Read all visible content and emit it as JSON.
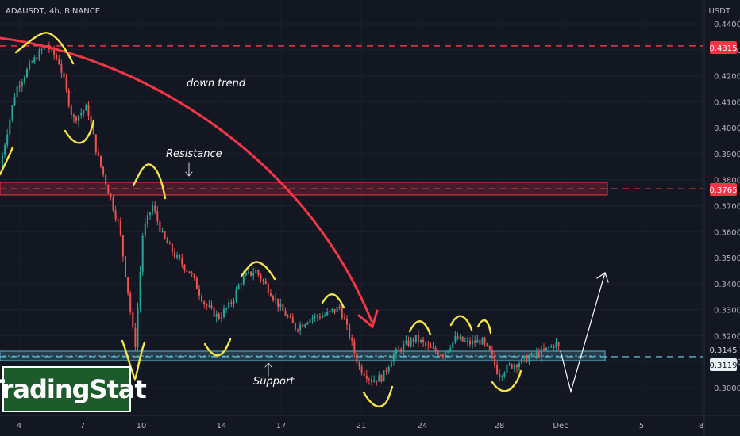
{
  "header": {
    "symbol": "ADAUSDT, 4h, BINANCE",
    "unit": "USDT"
  },
  "brand": {
    "text": "TradingStat"
  },
  "colors": {
    "bg": "#131722",
    "up": "#26a69a",
    "down": "#ef5350",
    "annot": "#f5e642",
    "trend": "#f23645",
    "support": "#5fb3c9"
  },
  "chart_data": {
    "type": "candlestick",
    "title": "ADAUSDT, 4h, BINANCE",
    "x_ticks": [
      "4",
      "7",
      "10",
      "14",
      "17",
      "21",
      "24",
      "28",
      "Dec",
      "5",
      "8"
    ],
    "y_ticks": [
      "0.3000",
      "0.3100",
      "0.3200",
      "0.3300",
      "0.3400",
      "0.3500",
      "0.3600",
      "0.3700",
      "0.3800",
      "0.3900",
      "0.4000",
      "0.4100",
      "0.4200",
      "0.4300",
      "0.4400"
    ],
    "ylim": [
      0.292,
      0.4455
    ],
    "price_labels": [
      {
        "value": "0.4315",
        "color": "#f23645"
      },
      {
        "value": "0.3765",
        "color": "#f23645"
      },
      {
        "value": "0.3145",
        "color": "#ffffff"
      },
      {
        "value": "0.3119",
        "color": "#131722"
      }
    ],
    "resistance_zone": [
      0.3755,
      0.3808
    ],
    "support_zone": [
      0.3097,
      0.3134
    ],
    "dashed_levels": [
      0.4315,
      0.3765,
      0.3119
    ],
    "annotations": [
      "down trend",
      "Resistance",
      "Support"
    ]
  }
}
